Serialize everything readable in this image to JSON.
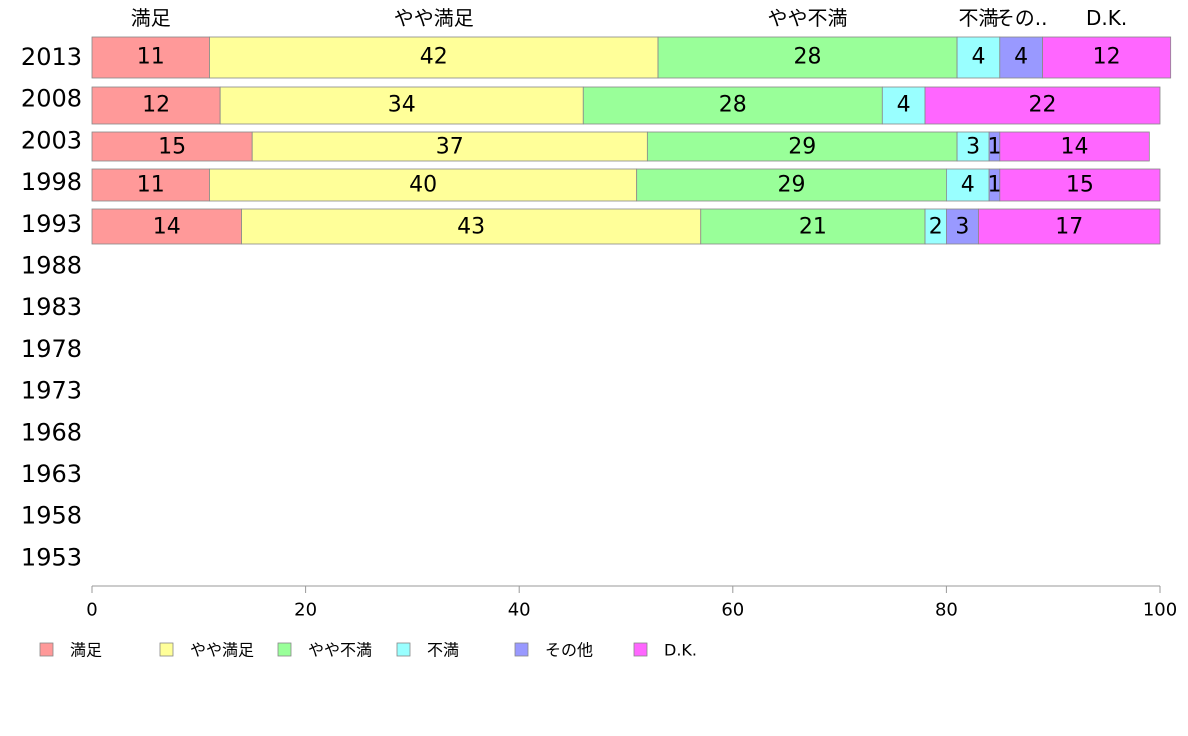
{
  "chart_data": {
    "type": "bar",
    "orientation": "horizontal",
    "stacked": true,
    "categories": [
      "2013",
      "2008",
      "2003",
      "1998",
      "1993",
      "1988",
      "1983",
      "1978",
      "1973",
      "1968",
      "1963",
      "1958",
      "1953"
    ],
    "series": [
      {
        "name": "満足",
        "color": "#ff9999",
        "values": [
          11,
          12,
          15,
          11,
          14,
          null,
          null,
          null,
          null,
          null,
          null,
          null,
          null
        ]
      },
      {
        "name": "やや満足",
        "color": "#ffff99",
        "values": [
          42,
          34,
          37,
          40,
          43,
          null,
          null,
          null,
          null,
          null,
          null,
          null,
          null
        ]
      },
      {
        "name": "やや不満",
        "color": "#99ff99",
        "values": [
          28,
          28,
          29,
          29,
          21,
          null,
          null,
          null,
          null,
          null,
          null,
          null,
          null
        ]
      },
      {
        "name": "不満",
        "color": "#99ffff",
        "values": [
          4,
          4,
          3,
          4,
          2,
          null,
          null,
          null,
          null,
          null,
          null,
          null,
          null
        ]
      },
      {
        "name": "その他",
        "color": "#9999ff",
        "values": [
          4,
          0,
          1,
          1,
          3,
          null,
          null,
          null,
          null,
          null,
          null,
          null,
          null
        ]
      },
      {
        "name": "D.K.",
        "color": "#ff66ff",
        "values": [
          12,
          22,
          14,
          15,
          17,
          null,
          null,
          null,
          null,
          null,
          null,
          null,
          null
        ]
      }
    ],
    "top_labels": [
      "満足",
      "やや満足",
      "やや不満",
      "不満",
      "その..",
      "D.K."
    ],
    "xlim": [
      0,
      100
    ],
    "x_ticks": [
      "0",
      "20",
      "40",
      "60",
      "80",
      "100"
    ],
    "grid": false,
    "legend_position": "bottom-left"
  }
}
